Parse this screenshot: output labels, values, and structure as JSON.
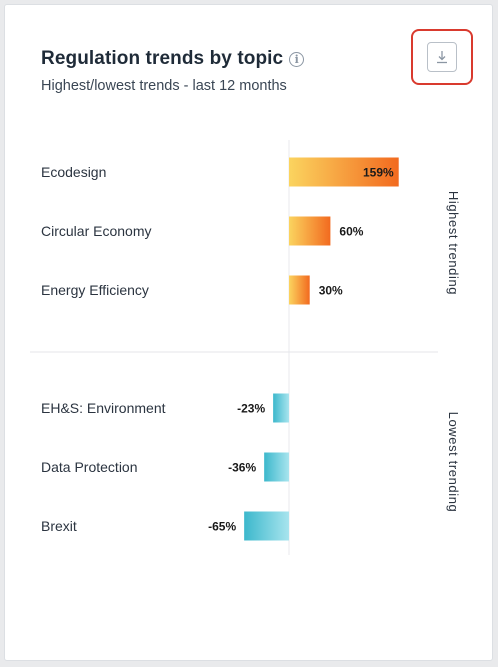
{
  "card": {
    "title": "Regulation trends by topic",
    "subtitle": "Highest/lowest trends - last 12 months",
    "info_icon": "info-circle-icon",
    "download_icon": "download-icon"
  },
  "chart_data": {
    "type": "bar",
    "orientation": "horizontal",
    "unit": "%",
    "groups": [
      {
        "name": "Highest trending",
        "colors": [
          "#fbd45f",
          "#f26a1f"
        ],
        "categories": [
          "Ecodesign",
          "Circular Economy",
          "Energy Efficiency"
        ],
        "values": [
          159,
          60,
          30
        ],
        "labels": [
          "159%",
          "60%",
          "30%"
        ]
      },
      {
        "name": "Lowest trending",
        "colors": [
          "#a8e4ee",
          "#3cb8cc"
        ],
        "categories": [
          "EH&S: Environment",
          "Data Protection",
          "Brexit"
        ],
        "values": [
          -23,
          -36,
          -65
        ],
        "labels": [
          "-23%",
          "-36%",
          "-65%"
        ]
      }
    ]
  }
}
